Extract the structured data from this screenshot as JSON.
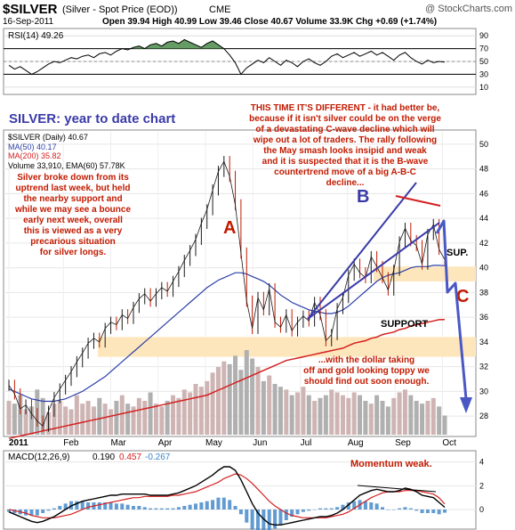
{
  "header": {
    "symbol": "$SILVER",
    "name": "(Silver - Spot Price (EOD))",
    "exchange": "CME",
    "brand": "@ StockCharts.com",
    "date": "16-Sep-2011",
    "ohlc": "Open 39.94  High 40.99  Low 39.46  Close 40.67  Volume 33.9K  Chg +0.69 (+1.74%)"
  },
  "chart_data": [
    {
      "type": "line",
      "panel": "rsi",
      "legend": "RSI(14) 49.26",
      "y_ticks": [
        90,
        70,
        50,
        30,
        10
      ],
      "ylim": [
        0,
        100
      ],
      "overbought": 70,
      "oversold": 30,
      "series": [
        {
          "name": "RSI(14)",
          "values": [
            44,
            38,
            42,
            36,
            30,
            34,
            40,
            46,
            50,
            48,
            52,
            56,
            54,
            58,
            60,
            56,
            62,
            64,
            60,
            66,
            70,
            68,
            72,
            74,
            70,
            76,
            78,
            74,
            80,
            82,
            78,
            84,
            80,
            76,
            72,
            78,
            82,
            76,
            70,
            60,
            48,
            30,
            40,
            46,
            52,
            48,
            56,
            50,
            44,
            52,
            48,
            42,
            50,
            54,
            48,
            44,
            50,
            58,
            62,
            56,
            60,
            64,
            58,
            62,
            66,
            60,
            64,
            58,
            52,
            60,
            64,
            56,
            50,
            46,
            52,
            48,
            50,
            49
          ]
        }
      ]
    },
    {
      "type": "line",
      "panel": "price",
      "y_ticks": [
        50,
        48,
        46,
        44,
        42,
        40,
        38,
        36,
        34,
        32,
        30,
        28
      ],
      "ylim": [
        26.5,
        51
      ],
      "x_labels": [
        "2011",
        "Feb",
        "Mar",
        "Apr",
        "May",
        "Jun",
        "Jul",
        "Aug",
        "Sep",
        "Oct"
      ],
      "legend": [
        "$SILVER (Daily) 40.67",
        "MA(50) 40.17",
        "MA(200) 35.82",
        "Volume 33,910, EMA(60) 57.78K"
      ],
      "series": [
        {
          "name": "$SILVER (Daily)",
          "values": [
            30.5,
            29.8,
            28.6,
            28.9,
            28.2,
            27.6,
            27.2,
            28.4,
            29.5,
            30.2,
            30.9,
            31.6,
            32.4,
            33.1,
            33.9,
            34.3,
            34.0,
            35.1,
            35.6,
            35.4,
            36.2,
            35.9,
            36.8,
            37.5,
            37.9,
            37.3,
            37.9,
            38.4,
            38.1,
            38.9,
            39.7,
            40.6,
            41.4,
            42.3,
            43.6,
            44.7,
            46.3,
            47.8,
            48.6,
            47.4,
            45.1,
            41.2,
            37.3,
            35.1,
            37.6,
            36.6,
            38.3,
            35.6,
            35.2,
            36.2,
            34.9,
            35.6,
            36.1,
            35.7,
            37.2,
            36.2,
            34.1,
            34.6,
            36.7,
            37.6,
            39.4,
            40.3,
            39.6,
            39.2,
            40.9,
            40.1,
            39.2,
            38.2,
            39.8,
            42.1,
            43.2,
            42.2,
            41.8,
            40.3,
            42.7,
            43.5,
            41.5,
            40.67
          ]
        },
        {
          "name": "MA(50)",
          "values": [
            30.2,
            30.0,
            29.8,
            29.6,
            29.4,
            29.3,
            29.2,
            29.2,
            29.2,
            29.3,
            29.4,
            29.6,
            29.8,
            30.0,
            30.3,
            30.6,
            30.9,
            31.2,
            31.6,
            32.0,
            32.4,
            32.8,
            33.2,
            33.6,
            34.0,
            34.4,
            34.8,
            35.2,
            35.6,
            36.0,
            36.4,
            36.8,
            37.2,
            37.6,
            38.0,
            38.4,
            38.7,
            39.0,
            39.2,
            39.4,
            39.6,
            39.6,
            39.5,
            39.3,
            39.1,
            38.9,
            38.6,
            38.2,
            37.8,
            37.5,
            37.2,
            37.0,
            36.8,
            36.6,
            36.5,
            36.4,
            36.3,
            36.3,
            36.4,
            36.6,
            36.9,
            37.3,
            37.7,
            38.1,
            38.5,
            38.9,
            39.2,
            39.4,
            39.5,
            39.6,
            39.8,
            40.0,
            40.1,
            40.1,
            40.1,
            40.2,
            40.2,
            40.17
          ]
        },
        {
          "name": "MA(200)",
          "values": [
            26.2,
            26.3,
            26.4,
            26.5,
            26.6,
            26.7,
            26.8,
            26.9,
            27.0,
            27.1,
            27.2,
            27.3,
            27.4,
            27.5,
            27.6,
            27.7,
            27.8,
            27.9,
            28.0,
            28.1,
            28.2,
            28.3,
            28.4,
            28.5,
            28.6,
            28.7,
            28.8,
            28.9,
            29.0,
            29.1,
            29.2,
            29.3,
            29.4,
            29.5,
            29.6,
            29.7,
            29.9,
            30.1,
            30.3,
            30.5,
            30.7,
            30.9,
            31.1,
            31.3,
            31.5,
            31.7,
            31.9,
            32.1,
            32.3,
            32.5,
            32.6,
            32.7,
            32.8,
            32.9,
            33.0,
            33.1,
            33.2,
            33.3,
            33.4,
            33.5,
            33.7,
            33.9,
            34.0,
            34.1,
            34.3,
            34.4,
            34.6,
            34.7,
            34.8,
            35.0,
            35.1,
            35.3,
            35.4,
            35.5,
            35.6,
            35.7,
            35.8,
            35.82
          ]
        }
      ],
      "volume": [
        60,
        55,
        70,
        45,
        50,
        80,
        65,
        40,
        55,
        60,
        50,
        45,
        70,
        55,
        60,
        50,
        65,
        55,
        45,
        60,
        70,
        55,
        50,
        65,
        60,
        75,
        55,
        50,
        60,
        70,
        65,
        80,
        75,
        90,
        85,
        95,
        110,
        120,
        130,
        125,
        140,
        115,
        150,
        135,
        120,
        95,
        105,
        90,
        85,
        80,
        70,
        75,
        85,
        70,
        60,
        65,
        70,
        80,
        75,
        70,
        65,
        75,
        70,
        60,
        55,
        70,
        60,
        50,
        65,
        75,
        80,
        70,
        60,
        55,
        60,
        65,
        50,
        34
      ]
    },
    {
      "type": "line",
      "panel": "macd",
      "legend": [
        "MACD(12,26,9)",
        "0.190",
        "0.457",
        "-0.267"
      ],
      "y_ticks": [
        4,
        2,
        0
      ],
      "ylim": [
        -1.5,
        4.8
      ],
      "series": [
        {
          "name": "MACD",
          "values": [
            -0.2,
            -0.4,
            -0.6,
            -0.8,
            -1.0,
            -1.1,
            -1.0,
            -0.8,
            -0.6,
            -0.3,
            0.0,
            0.3,
            0.5,
            0.7,
            0.8,
            0.9,
            1.0,
            1.1,
            1.2,
            1.2,
            1.3,
            1.3,
            1.3,
            1.3,
            1.3,
            1.2,
            1.2,
            1.2,
            1.2,
            1.3,
            1.4,
            1.6,
            1.8,
            2.0,
            2.3,
            2.6,
            2.9,
            3.3,
            3.6,
            3.6,
            3.3,
            2.5,
            1.5,
            0.5,
            -0.3,
            -0.8,
            -1.2,
            -1.3,
            -1.3,
            -1.2,
            -1.1,
            -1.0,
            -0.9,
            -0.8,
            -0.7,
            -0.6,
            -0.6,
            -0.5,
            -0.3,
            0.0,
            0.4,
            0.8,
            1.2,
            1.4,
            1.6,
            1.7,
            1.6,
            1.5,
            1.5,
            1.6,
            1.8,
            1.7,
            1.5,
            1.2,
            1.1,
            1.0,
            0.6,
            0.19
          ]
        },
        {
          "name": "Signal",
          "values": [
            0.0,
            -0.1,
            -0.2,
            -0.3,
            -0.5,
            -0.6,
            -0.7,
            -0.7,
            -0.7,
            -0.6,
            -0.5,
            -0.4,
            -0.2,
            0.0,
            0.2,
            0.3,
            0.4,
            0.5,
            0.6,
            0.7,
            0.8,
            0.9,
            1.0,
            1.0,
            1.1,
            1.1,
            1.1,
            1.1,
            1.1,
            1.2,
            1.2,
            1.3,
            1.4,
            1.5,
            1.7,
            1.9,
            2.1,
            2.3,
            2.6,
            2.8,
            3.0,
            2.9,
            2.6,
            2.2,
            1.7,
            1.2,
            0.7,
            0.3,
            0.0,
            -0.3,
            -0.5,
            -0.6,
            -0.7,
            -0.7,
            -0.7,
            -0.7,
            -0.7,
            -0.6,
            -0.5,
            -0.4,
            -0.2,
            0.1,
            0.4,
            0.7,
            1.0,
            1.2,
            1.4,
            1.5,
            1.5,
            1.5,
            1.6,
            1.6,
            1.6,
            1.5,
            1.4,
            1.3,
            1.0,
            0.457
          ]
        },
        {
          "name": "Histogram",
          "values": [
            -0.2,
            -0.3,
            -0.4,
            -0.5,
            -0.5,
            -0.5,
            -0.3,
            -0.1,
            0.1,
            0.3,
            0.5,
            0.7,
            0.7,
            0.7,
            0.6,
            0.6,
            0.6,
            0.6,
            0.6,
            0.5,
            0.5,
            0.4,
            0.3,
            0.3,
            0.2,
            0.1,
            0.1,
            0.1,
            0.1,
            0.1,
            0.2,
            0.3,
            0.4,
            0.5,
            0.6,
            0.7,
            0.8,
            1.0,
            1.0,
            0.8,
            0.3,
            -0.4,
            -1.1,
            -1.7,
            -2.0,
            -2.0,
            -1.9,
            -1.6,
            -1.3,
            -0.9,
            -0.6,
            -0.4,
            -0.2,
            -0.1,
            0.0,
            0.1,
            0.1,
            0.1,
            0.2,
            0.4,
            0.6,
            0.7,
            0.8,
            0.7,
            0.6,
            0.5,
            0.2,
            0.0,
            0.0,
            0.1,
            0.2,
            0.1,
            -0.1,
            -0.3,
            -0.3,
            -0.3,
            -0.4,
            -0.267
          ]
        }
      ]
    }
  ],
  "annotations": {
    "title": "SILVER: year to date chart",
    "warning": [
      "THIS TIME IT'S DIFFERENT - it had better be,",
      "because if it isn't silver could be on the verge",
      "of a devastating C-wave decline which will",
      "wipe out a lot of traders. The rally following",
      "the May smash looks insipid and weak",
      "and it is suspected that it is the B-wave",
      "countertrend move of a big A-B-C",
      "decline..."
    ],
    "left_note": [
      "Silver broke down from its",
      "uptrend last week, but held",
      "the nearby support and",
      "while we may see a bounce",
      "early next week, overall",
      "this is viewed as a very",
      "precarious situation",
      "for silver longs."
    ],
    "wave_a": "A",
    "wave_b": "B",
    "wave_c": "C",
    "support": "SUPPORT",
    "sup": "SUP.",
    "dollar_note": [
      "...with the dollar taking",
      "off and gold looking toppy we",
      "should find out soon enough."
    ],
    "momentum": "Momentum weak."
  },
  "colors": {
    "price": "#1a1a1a",
    "ma50": "#2b3fa8",
    "ma200": "#d42020",
    "volume_up": "#cfb4b4",
    "volume_down": "#b0b0b0",
    "rsi_fill": "#4a8a4a",
    "support_band": "#fde6bc",
    "annotation_red": "#c21a00",
    "annotation_blue": "#3a3aa8",
    "wave_arrow": "#4a58c4",
    "macd_hist": "#3a82c6"
  }
}
